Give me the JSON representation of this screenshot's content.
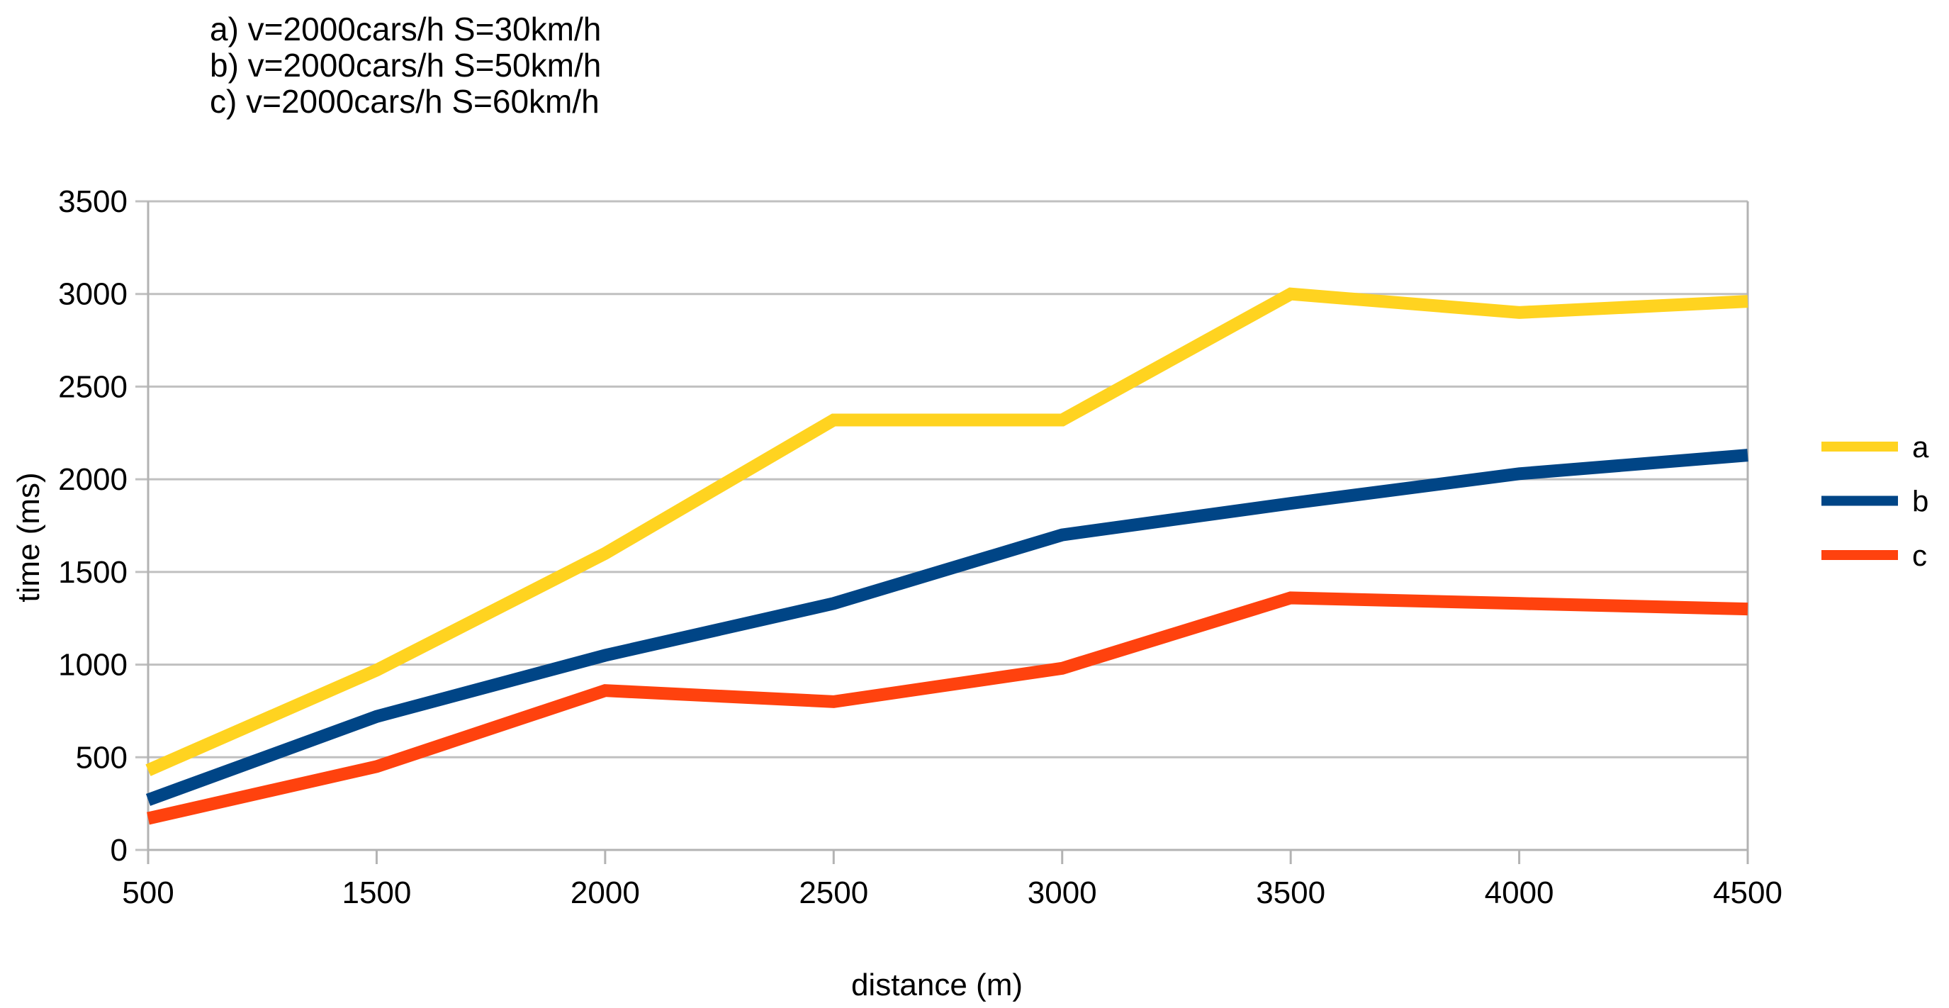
{
  "chart_data": {
    "type": "line",
    "titles": [
      "a) v=2000cars/h S=30km/h",
      "b) v=2000cars/h S=50km/h",
      "c) v=2000cars/h S=60km/h"
    ],
    "x_categories": [
      "500",
      "1500",
      "2000",
      "2500",
      "3000",
      "3500",
      "4000",
      "4500"
    ],
    "series": [
      {
        "name": "a",
        "color": "#FFD320",
        "values": [
          430,
          970,
          1600,
          2320,
          2320,
          3000,
          2900,
          2960
        ]
      },
      {
        "name": "b",
        "color": "#004586",
        "values": [
          270,
          720,
          1050,
          1330,
          1700,
          1870,
          2030,
          2130
        ]
      },
      {
        "name": "c",
        "color": "#FF420E",
        "values": [
          170,
          450,
          860,
          800,
          980,
          1360,
          1330,
          1300
        ]
      }
    ],
    "xlabel": "distance (m)",
    "ylabel": "time (ms)",
    "ylim": [
      0,
      3500
    ],
    "y_ticks": [
      0,
      500,
      1000,
      1500,
      2000,
      2500,
      3000,
      3500
    ],
    "grid": "horizontal-only",
    "legend_position": "right",
    "colors": {
      "gridline": "#C0C0C0",
      "axis": "#B3B3B3",
      "text": "#000000",
      "background": "#FFFFFF"
    }
  }
}
